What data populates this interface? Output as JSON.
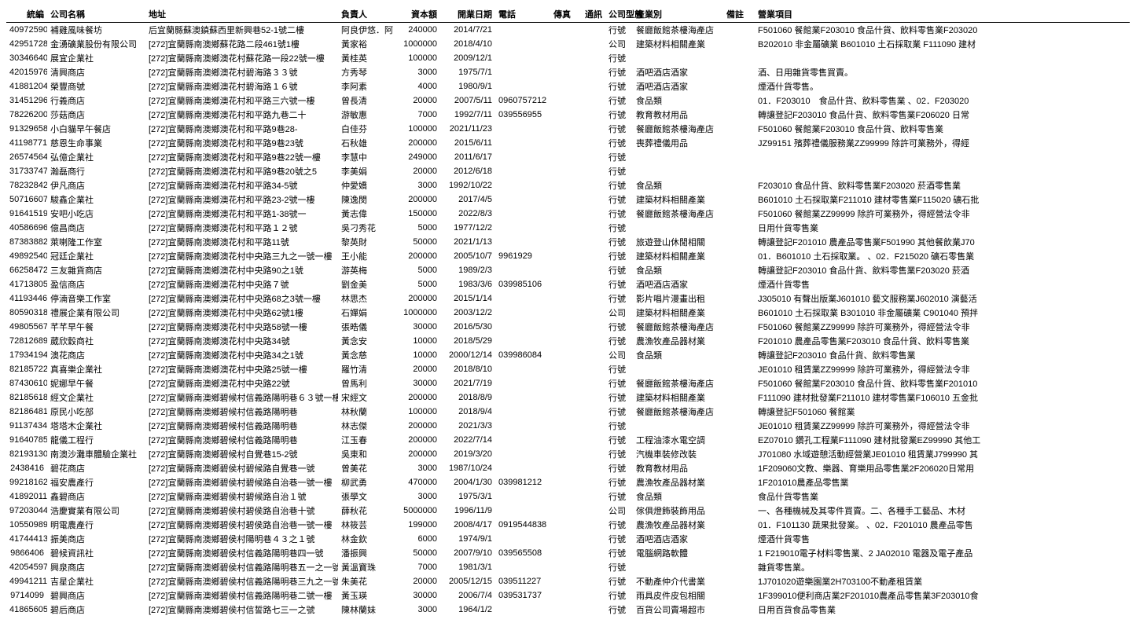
{
  "columns": [
    {
      "key": "id",
      "label": "統編",
      "class": "col-id"
    },
    {
      "key": "name",
      "label": "公司名稱",
      "class": "col-name"
    },
    {
      "key": "addr",
      "label": "地址",
      "class": "col-addr"
    },
    {
      "key": "person",
      "label": "負責人",
      "class": "col-person"
    },
    {
      "key": "capital",
      "label": "資本額",
      "class": "col-capital"
    },
    {
      "key": "date",
      "label": "開業日期",
      "class": "col-date"
    },
    {
      "key": "phone",
      "label": "電話",
      "class": "col-phone"
    },
    {
      "key": "fax",
      "label": "傳真",
      "class": "col-fax"
    },
    {
      "key": "comm",
      "label": "通訊",
      "class": "col-comm"
    },
    {
      "key": "cotype",
      "label": "公司型態",
      "class": "col-cotype"
    },
    {
      "key": "industry",
      "label": "產業別",
      "class": "col-industry"
    },
    {
      "key": "remark",
      "label": "備註",
      "class": "col-remark"
    },
    {
      "key": "business",
      "label": "營業項目",
      "class": "col-business"
    }
  ],
  "rows": [
    {
      "id": "40972590",
      "name": "補雞風味餐坊",
      "addr": "后宜蘭縣蘇澳鎮蘇西里新興巷52-1號二樓",
      "person": "阿良伊悠．阿",
      "capital": "240000",
      "date": "2014/7/21",
      "phone": "",
      "fax": "",
      "comm": "",
      "cotype": "行號",
      "industry": "餐廳飯館茶樓海產店",
      "remark": "",
      "business": "F501060 餐館業F203010 食品什貨、飲料零售業F203020"
    },
    {
      "id": "42951728",
      "name": "金湧礦業股份有限公司",
      "addr": "[272]宜蘭縣南澳鄉蘇花路二段461號1樓",
      "person": "黃家裕",
      "capital": "1000000",
      "date": "2018/4/10",
      "phone": "",
      "fax": "",
      "comm": "",
      "cotype": "公司",
      "industry": "建築材料相關產業",
      "remark": "",
      "business": "B202010 非金屬礦業 B601010 土石採取業 F111090 建材"
    },
    {
      "id": "30346640",
      "name": "展宜企業社",
      "addr": "[272]宜蘭縣南澳鄉澳花村蘇花路一段22號一樓",
      "person": "黃桂英",
      "capital": "100000",
      "date": "2009/12/1",
      "phone": "",
      "fax": "",
      "comm": "",
      "cotype": "行號",
      "industry": "",
      "remark": "",
      "business": ""
    },
    {
      "id": "42015976",
      "name": "清興商店",
      "addr": "[272]宜蘭縣南澳鄉澳花村碧海路３３號",
      "person": "方秀琴",
      "capital": "3000",
      "date": "1975/7/1",
      "phone": "",
      "fax": "",
      "comm": "",
      "cotype": "行號",
      "industry": "酒吧酒店酒家",
      "remark": "",
      "business": "酒、日用雜貨零售買賣。"
    },
    {
      "id": "41881204",
      "name": "榮豐商號",
      "addr": "[272]宜蘭縣南澳鄉澳花村碧海路１６號",
      "person": "李阿素",
      "capital": "4000",
      "date": "1980/9/1",
      "phone": "",
      "fax": "",
      "comm": "",
      "cotype": "行號",
      "industry": "酒吧酒店酒家",
      "remark": "",
      "business": "煙酒什貨零售。"
    },
    {
      "id": "31451296",
      "name": "行義商店",
      "addr": "[272]宜蘭縣南澳鄉澳花村和平路三六號一樓",
      "person": "曾長清",
      "capital": "20000",
      "date": "2007/5/11",
      "phone": "0960757212",
      "fax": "",
      "comm": "",
      "cotype": "行號",
      "industry": "食品類",
      "remark": "",
      "business": "01．F203010　食品什貨、飲料零售業 、02．F203020"
    },
    {
      "id": "78226200",
      "name": "莎菇商店",
      "addr": "[272]宜蘭縣南澳鄉澳花村和平路九巷二十",
      "person": "游敏惠",
      "capital": "7000",
      "date": "1992/7/11",
      "phone": "039556955",
      "fax": "",
      "comm": "",
      "cotype": "行號",
      "industry": "教育教材用品",
      "remark": "",
      "business": "轉讓登記F203010 食品什貨、飲料零售業F206020 日常"
    },
    {
      "id": "91329658",
      "name": "小白貓早午餐店",
      "addr": "[272]宜蘭縣南澳鄉澳花村和平路9巷28-",
      "person": "白佳芬",
      "capital": "100000",
      "date": "2021/11/23",
      "phone": "",
      "fax": "",
      "comm": "",
      "cotype": "行號",
      "industry": "餐廳飯館茶樓海產店",
      "remark": "",
      "business": "F501060 餐館業F203010 食品什貨、飲料零售業"
    },
    {
      "id": "41198771",
      "name": "慈恩生命事業",
      "addr": "[272]宜蘭縣南澳鄉澳花村和平路9巷23號",
      "person": "石秋雄",
      "capital": "200000",
      "date": "2015/6/11",
      "phone": "",
      "fax": "",
      "comm": "",
      "cotype": "行號",
      "industry": "喪葬禮儀用品",
      "remark": "",
      "business": "JZ99151 殯葬禮儀服務業ZZ99999 除許可業務外，得經"
    },
    {
      "id": "26574564",
      "name": "弘億企業社",
      "addr": "[272]宜蘭縣南澳鄉澳花村和平路9巷22號一樓",
      "person": "李慧中",
      "capital": "249000",
      "date": "2011/6/17",
      "phone": "",
      "fax": "",
      "comm": "",
      "cotype": "行號",
      "industry": "",
      "remark": "",
      "business": ""
    },
    {
      "id": "31733747",
      "name": "瀚磊商行",
      "addr": "[272]宜蘭縣南澳鄉澳花村和平路9巷20號之5",
      "person": "李美娟",
      "capital": "20000",
      "date": "2012/6/18",
      "phone": "",
      "fax": "",
      "comm": "",
      "cotype": "行號",
      "industry": "",
      "remark": "",
      "business": ""
    },
    {
      "id": "78232842",
      "name": "伊凡商店",
      "addr": "[272]宜蘭縣南澳鄉澳花村和平路34-5號",
      "person": "仲愛嬌",
      "capital": "3000",
      "date": "1992/10/22",
      "phone": "",
      "fax": "",
      "comm": "",
      "cotype": "行號",
      "industry": "食品類",
      "remark": "",
      "business": "F203010 食品什貨、飲料零售業F203020 菸酒零售業"
    },
    {
      "id": "50716607",
      "name": "駿鑫企業社",
      "addr": "[272]宜蘭縣南澳鄉澳花村和平路23-2號一樓",
      "person": "陳逸閔",
      "capital": "200000",
      "date": "2017/4/5",
      "phone": "",
      "fax": "",
      "comm": "",
      "cotype": "行號",
      "industry": "建築材料相關產業",
      "remark": "",
      "business": "B601010 土石採取業F211010 建材零售業F115020 礦石批"
    },
    {
      "id": "91641519",
      "name": "安吧小吃店",
      "addr": "[272]宜蘭縣南澳鄉澳花村和平路1-38號一",
      "person": "黃志偉",
      "capital": "150000",
      "date": "2022/8/3",
      "phone": "",
      "fax": "",
      "comm": "",
      "cotype": "行號",
      "industry": "餐廳飯館茶樓海產店",
      "remark": "",
      "business": "F501060 餐館業ZZ99999 除許可業務外，得經營法令非"
    },
    {
      "id": "40586696",
      "name": "億昌商店",
      "addr": "[272]宜蘭縣南澳鄉澳花村和平路１２號",
      "person": "吳刁秀花",
      "capital": "5000",
      "date": "1977/12/2",
      "phone": "",
      "fax": "",
      "comm": "",
      "cotype": "行號",
      "industry": "",
      "remark": "",
      "business": "日用什貨零售業"
    },
    {
      "id": "87383882",
      "name": "萊喇隆工作室",
      "addr": "[272]宜蘭縣南澳鄉澳花村和平路11號",
      "person": "黎英財",
      "capital": "50000",
      "date": "2021/1/13",
      "phone": "",
      "fax": "",
      "comm": "",
      "cotype": "行號",
      "industry": "旅遊登山休閒相關",
      "remark": "",
      "business": "轉讓登記F201010 農產品零售業F501990 其他餐飲業J70"
    },
    {
      "id": "49892540",
      "name": "冠廷企業社",
      "addr": "[272]宜蘭縣南澳鄉澳花村中央路三九之一號一樓",
      "person": "王小能",
      "capital": "200000",
      "date": "2005/10/7",
      "phone": "9961929",
      "fax": "",
      "comm": "",
      "cotype": "行號",
      "industry": "建築材料相關產業",
      "remark": "",
      "business": "01．B601010 土石採取業。 、02．F215020 礦石零售業"
    },
    {
      "id": "66258472",
      "name": "三友雜貨商店",
      "addr": "[272]宜蘭縣南澳鄉澳花村中央路90之1號",
      "person": "游英梅",
      "capital": "5000",
      "date": "1989/2/3",
      "phone": "",
      "fax": "",
      "comm": "",
      "cotype": "行號",
      "industry": "食品類",
      "remark": "",
      "business": "轉讓登記F203010 食品什貨、飲料零售業F203020 菸酒"
    },
    {
      "id": "41713805",
      "name": "盈信商店",
      "addr": "[272]宜蘭縣南澳鄉澳花村中央路７號",
      "person": "劉金美",
      "capital": "5000",
      "date": "1983/3/6",
      "phone": "039985106",
      "fax": "",
      "comm": "",
      "cotype": "行號",
      "industry": "酒吧酒店酒家",
      "remark": "",
      "business": "煙酒什貨零售"
    },
    {
      "id": "41193446",
      "name": "停湳音樂工作室",
      "addr": "[272]宜蘭縣南澳鄉澳花村中央路68之3號一樓",
      "person": "林思杰",
      "capital": "200000",
      "date": "2015/1/14",
      "phone": "",
      "fax": "",
      "comm": "",
      "cotype": "行號",
      "industry": "影片唱片漫畫出租",
      "remark": "",
      "business": "J305010 有聲出版業J601010 藝文服務業J602010 演藝活"
    },
    {
      "id": "80590318",
      "name": "禮展企業有限公司",
      "addr": "[272]宜蘭縣南澳鄉澳花村中央路62號1樓",
      "person": "石嬋娟",
      "capital": "1000000",
      "date": "2003/12/2",
      "phone": "",
      "fax": "",
      "comm": "",
      "cotype": "公司",
      "industry": "建築材料相關產業",
      "remark": "",
      "business": "B601010 土石採取業 B301010 非金屬礦業 C901040 預拌"
    },
    {
      "id": "49805567",
      "name": "芊芊早午餐",
      "addr": "[272]宜蘭縣南澳鄉澳花村中央路58號一樓",
      "person": "張晧儀",
      "capital": "30000",
      "date": "2016/5/30",
      "phone": "",
      "fax": "",
      "comm": "",
      "cotype": "行號",
      "industry": "餐廳飯館茶樓海產店",
      "remark": "",
      "business": "F501060 餐館業ZZ99999 除許可業務外，得經營法令非"
    },
    {
      "id": "72812689",
      "name": "葳欣穀商社",
      "addr": "[272]宜蘭縣南澳鄉澳花村中央路34號",
      "person": "黃念安",
      "capital": "10000",
      "date": "2018/5/29",
      "phone": "",
      "fax": "",
      "comm": "",
      "cotype": "行號",
      "industry": "農漁牧產品器材業",
      "remark": "",
      "business": "F201010 農產品零售業F203010 食品什貨、飲料零售業"
    },
    {
      "id": "17934194",
      "name": "澳花商店",
      "addr": "[272]宜蘭縣南澳鄉澳花村中央路34之1號",
      "person": "黃念慈",
      "capital": "10000",
      "date": "2000/12/14",
      "phone": "039986084",
      "fax": "",
      "comm": "",
      "cotype": "公司",
      "industry": "食品類",
      "remark": "",
      "business": "轉讓登記F203010 食品什貨、飲料零售業"
    },
    {
      "id": "82185722",
      "name": "真喜樂企業社",
      "addr": "[272]宜蘭縣南澳鄉澳花村中央路25號一樓",
      "person": "羅竹清",
      "capital": "20000",
      "date": "2018/8/10",
      "phone": "",
      "fax": "",
      "comm": "",
      "cotype": "行號",
      "industry": "",
      "remark": "",
      "business": "JE01010 租賃業ZZ99999 除許可業務外，得經營法令非"
    },
    {
      "id": "87430610",
      "name": "妮娜早午餐",
      "addr": "[272]宜蘭縣南澳鄉澳花村中央路22號",
      "person": "曾馬利",
      "capital": "30000",
      "date": "2021/7/19",
      "phone": "",
      "fax": "",
      "comm": "",
      "cotype": "行號",
      "industry": "餐廳飯館茶樓海產店",
      "remark": "",
      "business": "F501060 餐館業F203010 食品什貨、飲料零售業F201010"
    },
    {
      "id": "82185618",
      "name": "經文企業社",
      "addr": "[272]宜蘭縣南澳鄉碧候村信義路陽明巷６３號一樓",
      "person": "宋經文",
      "capital": "200000",
      "date": "2018/8/9",
      "phone": "",
      "fax": "",
      "comm": "",
      "cotype": "行號",
      "industry": "建築材料相關產業",
      "remark": "",
      "business": "F111090 建材批發業F211010 建材零售業F106010 五金批"
    },
    {
      "id": "82186481",
      "name": "原民小吃部",
      "addr": "[272]宜蘭縣南澳鄉碧候村信義路陽明巷",
      "person": "林秋蘭",
      "capital": "100000",
      "date": "2018/9/4",
      "phone": "",
      "fax": "",
      "comm": "",
      "cotype": "行號",
      "industry": "餐廳飯館茶樓海產店",
      "remark": "",
      "business": "轉讓登記F501060 餐館業"
    },
    {
      "id": "91137434",
      "name": "塔塔木企業社",
      "addr": "[272]宜蘭縣南澳鄉碧候村信義路陽明巷",
      "person": "林志傑",
      "capital": "200000",
      "date": "2021/3/3",
      "phone": "",
      "fax": "",
      "comm": "",
      "cotype": "行號",
      "industry": "",
      "remark": "",
      "business": "JE01010 租賃業ZZ99999 除許可業務外，得經營法令非"
    },
    {
      "id": "91640785",
      "name": "龍儀工程行",
      "addr": "[272]宜蘭縣南澳鄉碧候村信義路陽明巷",
      "person": "江玉春",
      "capital": "200000",
      "date": "2022/7/14",
      "phone": "",
      "fax": "",
      "comm": "",
      "cotype": "行號",
      "industry": "工程油漆水電空調",
      "remark": "",
      "business": "EZ07010 鑽孔工程業F111090 建材批發業EZ99990 其他工"
    },
    {
      "id": "82193130",
      "name": "南澳沙灘車體驗企業社",
      "addr": "[272]宜蘭縣南澳鄉碧候村自覺巷15-2號",
      "person": "吳東和",
      "capital": "200000",
      "date": "2019/3/20",
      "phone": "",
      "fax": "",
      "comm": "",
      "cotype": "行號",
      "industry": "汽機車裝修改裝",
      "remark": "",
      "business": "J701080 水域遊憩活動經營業JE01010 租賃業J799990 其"
    },
    {
      "id": "2438416",
      "name": "碧花商店",
      "addr": "[272]宜蘭縣南澳鄉碧侯村碧候路自覺巷一號",
      "person": "曾美花",
      "capital": "3000",
      "date": "1987/10/24",
      "phone": "",
      "fax": "",
      "comm": "",
      "cotype": "行號",
      "industry": "教育教材用品",
      "remark": "",
      "business": "1F209060文教、樂器、育樂用品零售業2F206020日常用"
    },
    {
      "id": "99218162",
      "name": "福安農產行",
      "addr": "[272]宜蘭縣南澳鄉碧侯村碧候路自治巷一號一樓",
      "person": "柳武勇",
      "capital": "470000",
      "date": "2004/1/30",
      "phone": "039981212",
      "fax": "",
      "comm": "",
      "cotype": "行號",
      "industry": "農漁牧產品器材業",
      "remark": "",
      "business": "1F201010農產品零售業"
    },
    {
      "id": "41892011",
      "name": "鑫碧商店",
      "addr": "[272]宜蘭縣南澳鄉碧侯村碧候路自治１號",
      "person": "張學文",
      "capital": "3000",
      "date": "1975/3/1",
      "phone": "",
      "fax": "",
      "comm": "",
      "cotype": "行號",
      "industry": "食品類",
      "remark": "",
      "business": "食品什貨零售業"
    },
    {
      "id": "97203044",
      "name": "浩慶實業有限公司",
      "addr": "[272]宜蘭縣南澳鄉碧侯村碧侯路自治巷十號",
      "person": "薛秋花",
      "capital": "5000000",
      "date": "1996/11/9",
      "phone": "",
      "fax": "",
      "comm": "",
      "cotype": "公司",
      "industry": "傢俱燈飾裝飾用品",
      "remark": "",
      "business": "一、各種機械及其零件買賣。二、各種手工藝品、木材"
    },
    {
      "id": "10550989",
      "name": "明電農產行",
      "addr": "[272]宜蘭縣南澳鄉碧侯村碧侯路自治巷一號一樓",
      "person": "林筱芸",
      "capital": "199000",
      "date": "2008/4/17",
      "phone": "0919544838",
      "fax": "",
      "comm": "",
      "cotype": "行號",
      "industry": "農漁牧產品器材業",
      "remark": "",
      "business": "01．F101130 蔬果批發業。 、02．F201010 農產品零售"
    },
    {
      "id": "41744413",
      "name": "振美商店",
      "addr": "[272]宜蘭縣南澳鄉碧侯村陽明巷４３之１號",
      "person": "林金欽",
      "capital": "6000",
      "date": "1974/9/1",
      "phone": "",
      "fax": "",
      "comm": "",
      "cotype": "行號",
      "industry": "酒吧酒店酒家",
      "remark": "",
      "business": "煙酒什貨零售"
    },
    {
      "id": "9866406",
      "name": "碧候資訊社",
      "addr": "[272]宜蘭縣南澳鄉碧侯村信義路陽明巷四一號",
      "person": "潘振興",
      "capital": "50000",
      "date": "2007/9/10",
      "phone": "039565508",
      "fax": "",
      "comm": "",
      "cotype": "行號",
      "industry": "電腦網路軟體",
      "remark": "",
      "business": "1 F219010電子材料零售業、2 JA02010 電器及電子產品"
    },
    {
      "id": "42054597",
      "name": "興泉商店",
      "addr": "[272]宜蘭縣南澳鄉碧侯村信義路陽明巷五一之一號",
      "person": "黃溫寶珠",
      "capital": "7000",
      "date": "1981/3/1",
      "phone": "",
      "fax": "",
      "comm": "",
      "cotype": "行號",
      "industry": "",
      "remark": "",
      "business": "雜貨零售業。"
    },
    {
      "id": "49941211",
      "name": "吉星企業社",
      "addr": "[272]宜蘭縣南澳鄉碧侯村信義路陽明巷三九之一號",
      "person": "朱美花",
      "capital": "20000",
      "date": "2005/12/15",
      "phone": "039511227",
      "fax": "",
      "comm": "",
      "cotype": "行號",
      "industry": "不動產仲介代書業",
      "remark": "",
      "business": "1J701020遊樂園業2H703100不動產租賃業"
    },
    {
      "id": "9714099",
      "name": "碧興商店",
      "addr": "[272]宜蘭縣南澳鄉碧侯村信義路陽明巷二號一樓",
      "person": "黃玉瑛",
      "capital": "30000",
      "date": "2006/7/4",
      "phone": "039531737",
      "fax": "",
      "comm": "",
      "cotype": "行號",
      "industry": "雨具皮件皮包相關",
      "remark": "",
      "business": "1F399010便利商店業2F201010農產品零售業3F203010食"
    },
    {
      "id": "41865605",
      "name": "碧后商店",
      "addr": "[272]宜蘭縣南澳鄉碧侯村信誓路七三一之號",
      "person": "陳林蘭妹",
      "capital": "3000",
      "date": "1964/1/2",
      "phone": "",
      "fax": "",
      "comm": "",
      "cotype": "行號",
      "industry": "百貨公司賣場超市",
      "remark": "",
      "business": "日用百貨食品零售業"
    }
  ]
}
